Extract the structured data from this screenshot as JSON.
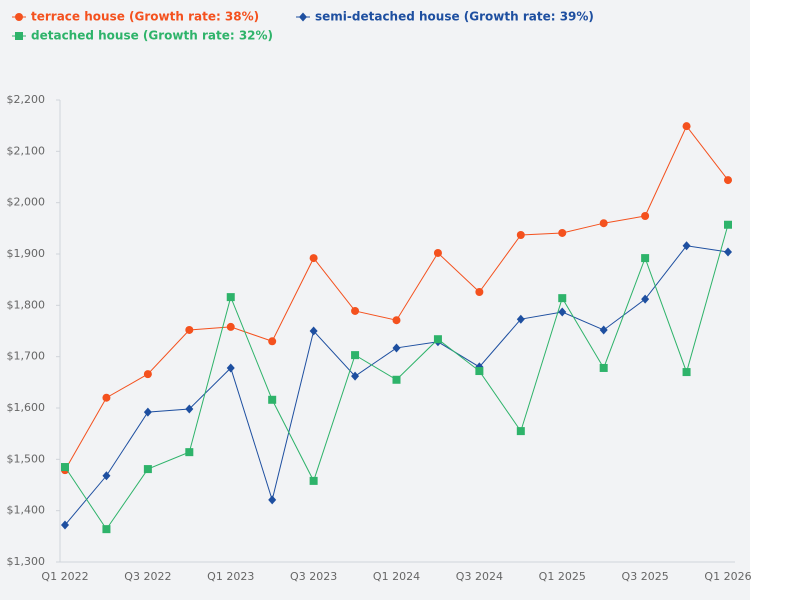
{
  "chart_data": {
    "type": "line",
    "categories": [
      "Q1 2022",
      null,
      "Q3 2022",
      null,
      "Q1 2023",
      null,
      "Q3 2023",
      null,
      "Q1 2024",
      null,
      "Q3 2024",
      null,
      "Q1 2025",
      null,
      "Q3 2025",
      null,
      "Q1 2026"
    ],
    "series": [
      {
        "name": "terrace house (Growth rate: 38%)",
        "color": "#f4511e",
        "marker": "circle",
        "values": [
          1479,
          1620,
          1666,
          1752,
          1758,
          1730,
          1892,
          1789,
          1771,
          1902,
          1826,
          1937,
          1941,
          1960,
          1974,
          2149,
          2044
        ]
      },
      {
        "name": "semi-detached house (Growth rate: 39%)",
        "color": "#1e4fa0",
        "marker": "diamond",
        "values": [
          1372,
          1468,
          1592,
          1598,
          1678,
          1421,
          1750,
          1662,
          1717,
          1729,
          1680,
          1773,
          1787,
          1752,
          1812,
          1916,
          1904
        ]
      },
      {
        "name": "detached house (Growth rate: 32%)",
        "color": "#2eb36a",
        "marker": "square",
        "values": [
          1485,
          1364,
          1481,
          1514,
          1816,
          1616,
          1458,
          1703,
          1655,
          1734,
          1672,
          1555,
          1814,
          1678,
          1892,
          1670,
          1957
        ]
      }
    ],
    "ylim": [
      1300,
      2200
    ],
    "yticks": [
      {
        "value": 1300,
        "label": "$1,300"
      },
      {
        "value": 1400,
        "label": "$1,400"
      },
      {
        "value": 1500,
        "label": "$1,500"
      },
      {
        "value": 1600,
        "label": "$1,600"
      },
      {
        "value": 1700,
        "label": "$1,700"
      },
      {
        "value": 1800,
        "label": "$1,800"
      },
      {
        "value": 1900,
        "label": "$1,900"
      },
      {
        "value": 2000,
        "label": "$2,000"
      },
      {
        "value": 2100,
        "label": "$2,100"
      },
      {
        "value": 2200,
        "label": "$2,200"
      }
    ],
    "grid": false,
    "legend": "top-left"
  }
}
